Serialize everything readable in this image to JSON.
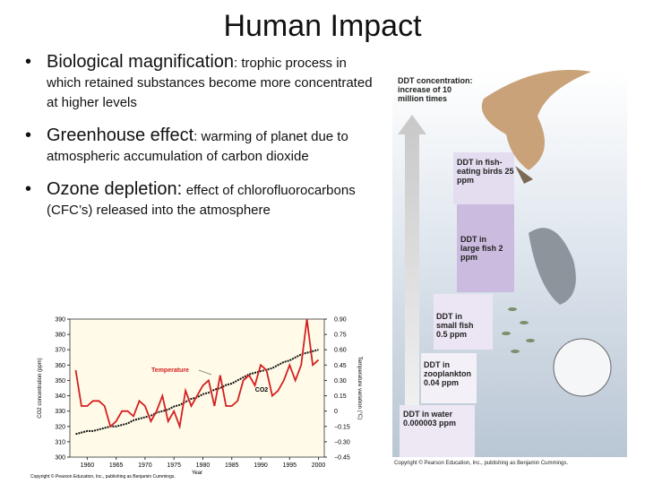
{
  "header": {
    "title": "Human Impact"
  },
  "bullets": [
    {
      "heading": "Biological magnification",
      "text": ": trophic process in which retained substances become more concentrated at higher levels"
    },
    {
      "heading": "Greenhouse effect",
      "text": ": warming of planet due to atmospheric accumulation of carbon dioxide"
    },
    {
      "heading": "Ozone depletion:",
      "text": "effect of chlorofluorocarbons (CFC’s) released into the atmosphere"
    }
  ],
  "diagram": {
    "labels": [
      "DDT concentration: increase of 10 million times",
      "DDT in fish-eating birds 25 ppm",
      "DDT in large fish 2 ppm",
      "DDT in small fish 0.5 ppm",
      "DDT in zooplankton 0.04 ppm",
      "DDT in water 0.000003 ppm"
    ],
    "copyright": "Copyright © Pearson Education, Inc., publishing as Benjamin Cummings."
  },
  "chart_data": {
    "type": "line",
    "xlabel": "Year",
    "ylabel": "CO2 concentration (ppm)",
    "y2label": "Temperature variation (°C)",
    "annotations": [
      "Temperature",
      "CO2"
    ],
    "copyright": "Copyright © Pearson Education, Inc., publishing as Benjamin Cummings.",
    "x": [
      1958,
      1959,
      1960,
      1961,
      1962,
      1963,
      1964,
      1965,
      1966,
      1967,
      1968,
      1969,
      1970,
      1971,
      1972,
      1973,
      1974,
      1975,
      1976,
      1977,
      1978,
      1979,
      1980,
      1981,
      1982,
      1983,
      1984,
      1985,
      1986,
      1987,
      1988,
      1989,
      1990,
      1991,
      1992,
      1993,
      1994,
      1995,
      1996,
      1997,
      1998,
      1999,
      2000
    ],
    "series": [
      {
        "name": "CO2",
        "color": "#111111",
        "values": [
          315,
          316,
          317,
          317,
          318,
          319,
          320,
          320,
          321,
          322,
          324,
          325,
          326,
          327,
          329,
          330,
          331,
          333,
          334,
          336,
          338,
          339,
          341,
          342,
          344,
          345,
          347,
          348,
          350,
          352,
          354,
          355,
          356,
          357,
          358,
          360,
          362,
          363,
          365,
          367,
          368,
          369,
          370
        ]
      },
      {
        "name": "Temperature",
        "color": "#d42020",
        "axis": "y2",
        "values": [
          0.4,
          0.05,
          0.05,
          0.1,
          0.1,
          0.05,
          -0.15,
          -0.1,
          0.0,
          0.0,
          -0.05,
          0.1,
          0.05,
          -0.1,
          0.0,
          0.15,
          -0.1,
          0.0,
          -0.15,
          0.2,
          0.05,
          0.15,
          0.25,
          0.3,
          0.05,
          0.35,
          0.05,
          0.05,
          0.1,
          0.3,
          0.35,
          0.25,
          0.45,
          0.4,
          0.15,
          0.2,
          0.3,
          0.45,
          0.3,
          0.45,
          0.9,
          0.45,
          0.5
        ]
      }
    ],
    "xlim": [
      1957,
      2001
    ],
    "xticks": [
      1960,
      1965,
      1970,
      1975,
      1980,
      1985,
      1990,
      1995,
      2000
    ],
    "ylim": [
      300,
      390
    ],
    "yticks": [
      300,
      310,
      320,
      330,
      340,
      350,
      360,
      370,
      380,
      390
    ],
    "y2lim": [
      -0.45,
      0.9
    ],
    "y2ticks": [
      {
        "value": -0.45,
        "label": "−0.45"
      },
      {
        "value": -0.3,
        "label": "−0.30"
      },
      {
        "value": -0.15,
        "label": "−0.15"
      },
      0,
      {
        "value": 0.15,
        "label": "0.15"
      },
      {
        "value": 0.3,
        "label": "0.30"
      },
      {
        "value": 0.45,
        "label": "0.45"
      },
      {
        "value": 0.6,
        "label": "0.60"
      },
      {
        "value": 0.75,
        "label": "0.75"
      },
      {
        "value": 0.9,
        "label": "0.90"
      }
    ]
  }
}
